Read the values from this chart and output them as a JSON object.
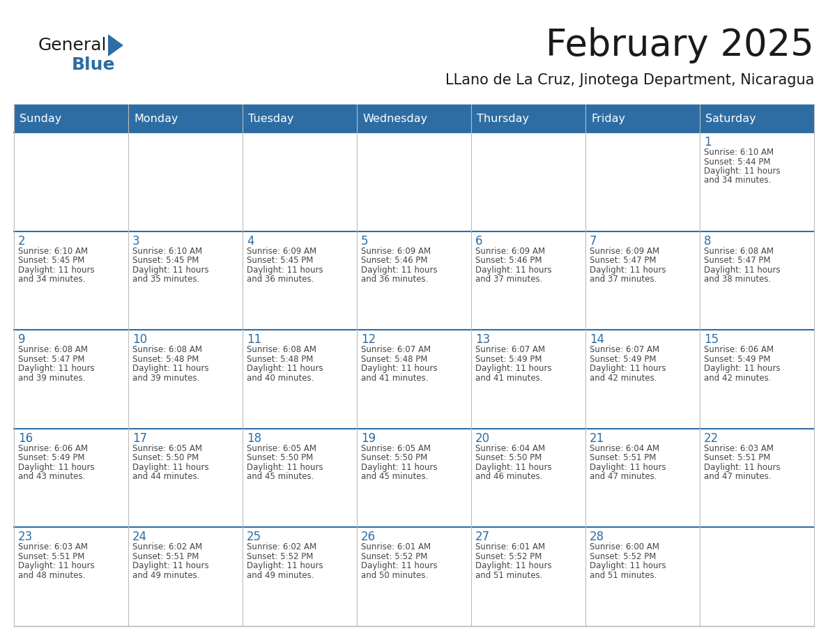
{
  "title": "February 2025",
  "subtitle": "LLano de La Cruz, Jinotega Department, Nicaragua",
  "header_color": "#2E6DA4",
  "header_text_color": "#FFFFFF",
  "day_names": [
    "Sunday",
    "Monday",
    "Tuesday",
    "Wednesday",
    "Thursday",
    "Friday",
    "Saturday"
  ],
  "background_color": "#FFFFFF",
  "cell_bg_white": "#FFFFFF",
  "cell_bg_light": "#F0F0F0",
  "day_number_color": "#2E6DA4",
  "info_text_color": "#444444",
  "grid_color": "#BBBBBB",
  "logo_triangle_color": "#2E6DA4",
  "title_color": "#1a1a1a",
  "subtitle_color": "#1a1a1a",
  "calendar_data": [
    [
      null,
      null,
      null,
      null,
      null,
      null,
      {
        "day": 1,
        "sunrise": "6:10 AM",
        "sunset": "5:44 PM",
        "daylight": "11 hours\nand 34 minutes."
      }
    ],
    [
      {
        "day": 2,
        "sunrise": "6:10 AM",
        "sunset": "5:45 PM",
        "daylight": "11 hours\nand 34 minutes."
      },
      {
        "day": 3,
        "sunrise": "6:10 AM",
        "sunset": "5:45 PM",
        "daylight": "11 hours\nand 35 minutes."
      },
      {
        "day": 4,
        "sunrise": "6:09 AM",
        "sunset": "5:45 PM",
        "daylight": "11 hours\nand 36 minutes."
      },
      {
        "day": 5,
        "sunrise": "6:09 AM",
        "sunset": "5:46 PM",
        "daylight": "11 hours\nand 36 minutes."
      },
      {
        "day": 6,
        "sunrise": "6:09 AM",
        "sunset": "5:46 PM",
        "daylight": "11 hours\nand 37 minutes."
      },
      {
        "day": 7,
        "sunrise": "6:09 AM",
        "sunset": "5:47 PM",
        "daylight": "11 hours\nand 37 minutes."
      },
      {
        "day": 8,
        "sunrise": "6:08 AM",
        "sunset": "5:47 PM",
        "daylight": "11 hours\nand 38 minutes."
      }
    ],
    [
      {
        "day": 9,
        "sunrise": "6:08 AM",
        "sunset": "5:47 PM",
        "daylight": "11 hours\nand 39 minutes."
      },
      {
        "day": 10,
        "sunrise": "6:08 AM",
        "sunset": "5:48 PM",
        "daylight": "11 hours\nand 39 minutes."
      },
      {
        "day": 11,
        "sunrise": "6:08 AM",
        "sunset": "5:48 PM",
        "daylight": "11 hours\nand 40 minutes."
      },
      {
        "day": 12,
        "sunrise": "6:07 AM",
        "sunset": "5:48 PM",
        "daylight": "11 hours\nand 41 minutes."
      },
      {
        "day": 13,
        "sunrise": "6:07 AM",
        "sunset": "5:49 PM",
        "daylight": "11 hours\nand 41 minutes."
      },
      {
        "day": 14,
        "sunrise": "6:07 AM",
        "sunset": "5:49 PM",
        "daylight": "11 hours\nand 42 minutes."
      },
      {
        "day": 15,
        "sunrise": "6:06 AM",
        "sunset": "5:49 PM",
        "daylight": "11 hours\nand 42 minutes."
      }
    ],
    [
      {
        "day": 16,
        "sunrise": "6:06 AM",
        "sunset": "5:49 PM",
        "daylight": "11 hours\nand 43 minutes."
      },
      {
        "day": 17,
        "sunrise": "6:05 AM",
        "sunset": "5:50 PM",
        "daylight": "11 hours\nand 44 minutes."
      },
      {
        "day": 18,
        "sunrise": "6:05 AM",
        "sunset": "5:50 PM",
        "daylight": "11 hours\nand 45 minutes."
      },
      {
        "day": 19,
        "sunrise": "6:05 AM",
        "sunset": "5:50 PM",
        "daylight": "11 hours\nand 45 minutes."
      },
      {
        "day": 20,
        "sunrise": "6:04 AM",
        "sunset": "5:50 PM",
        "daylight": "11 hours\nand 46 minutes."
      },
      {
        "day": 21,
        "sunrise": "6:04 AM",
        "sunset": "5:51 PM",
        "daylight": "11 hours\nand 47 minutes."
      },
      {
        "day": 22,
        "sunrise": "6:03 AM",
        "sunset": "5:51 PM",
        "daylight": "11 hours\nand 47 minutes."
      }
    ],
    [
      {
        "day": 23,
        "sunrise": "6:03 AM",
        "sunset": "5:51 PM",
        "daylight": "11 hours\nand 48 minutes."
      },
      {
        "day": 24,
        "sunrise": "6:02 AM",
        "sunset": "5:51 PM",
        "daylight": "11 hours\nand 49 minutes."
      },
      {
        "day": 25,
        "sunrise": "6:02 AM",
        "sunset": "5:52 PM",
        "daylight": "11 hours\nand 49 minutes."
      },
      {
        "day": 26,
        "sunrise": "6:01 AM",
        "sunset": "5:52 PM",
        "daylight": "11 hours\nand 50 minutes."
      },
      {
        "day": 27,
        "sunrise": "6:01 AM",
        "sunset": "5:52 PM",
        "daylight": "11 hours\nand 51 minutes."
      },
      {
        "day": 28,
        "sunrise": "6:00 AM",
        "sunset": "5:52 PM",
        "daylight": "11 hours\nand 51 minutes."
      },
      null
    ]
  ]
}
